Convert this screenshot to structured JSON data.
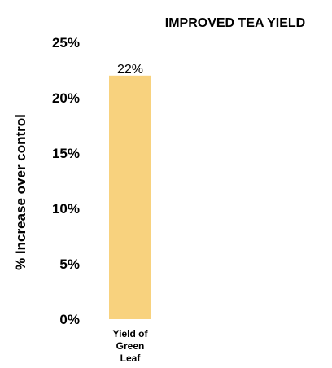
{
  "chart_data": {
    "type": "bar",
    "title": "IMPROVED TEA YIELD",
    "ylabel": "% Increase over control",
    "xlabel": "",
    "categories": [
      [
        "Yield of",
        "Green",
        "Leaf"
      ]
    ],
    "values": [
      22
    ],
    "data_labels": [
      "22%"
    ],
    "yticks": [
      0,
      5,
      10,
      15,
      20,
      25
    ],
    "ytick_labels": [
      "0%",
      "5%",
      "10%",
      "15%",
      "20%",
      "25%"
    ],
    "ylim": [
      0,
      25
    ],
    "grid": false,
    "bar_color": "#f8d27e"
  }
}
